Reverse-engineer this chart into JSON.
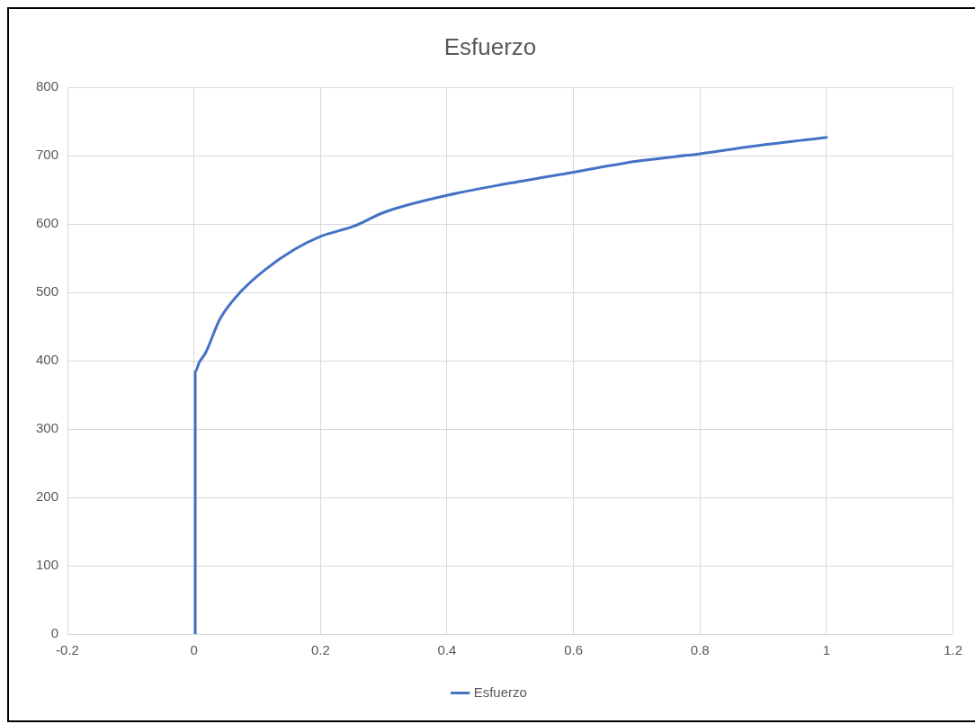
{
  "chart_data": {
    "type": "line",
    "title": "Esfuerzo",
    "series": [
      {
        "name": "Esfuerzo",
        "color": "#4472c4",
        "x": [
          0.002,
          0.002,
          0.002,
          0.0085,
          0.018,
          0.041,
          0.074,
          0.112,
          0.159,
          0.2,
          0.253,
          0.3,
          0.4,
          0.5,
          0.6,
          0.7,
          0.8,
          0.9,
          1.0
        ],
        "values": [
          0,
          200,
          384,
          398,
          411,
          461,
          501,
          533,
          563,
          582,
          597,
          617,
          642,
          660,
          676,
          692,
          703,
          716,
          727
        ]
      }
    ],
    "xlim": [
      -0.2,
      1.2
    ],
    "xticks": [
      -0.2,
      0,
      0.2,
      0.4,
      0.6,
      0.8,
      1,
      1.2
    ],
    "ylim": [
      0,
      800
    ],
    "yticks": [
      0,
      100,
      200,
      300,
      400,
      500,
      600,
      700,
      800
    ],
    "grid": true,
    "legend": "bottom",
    "marker": "none",
    "line_style": "solid"
  }
}
